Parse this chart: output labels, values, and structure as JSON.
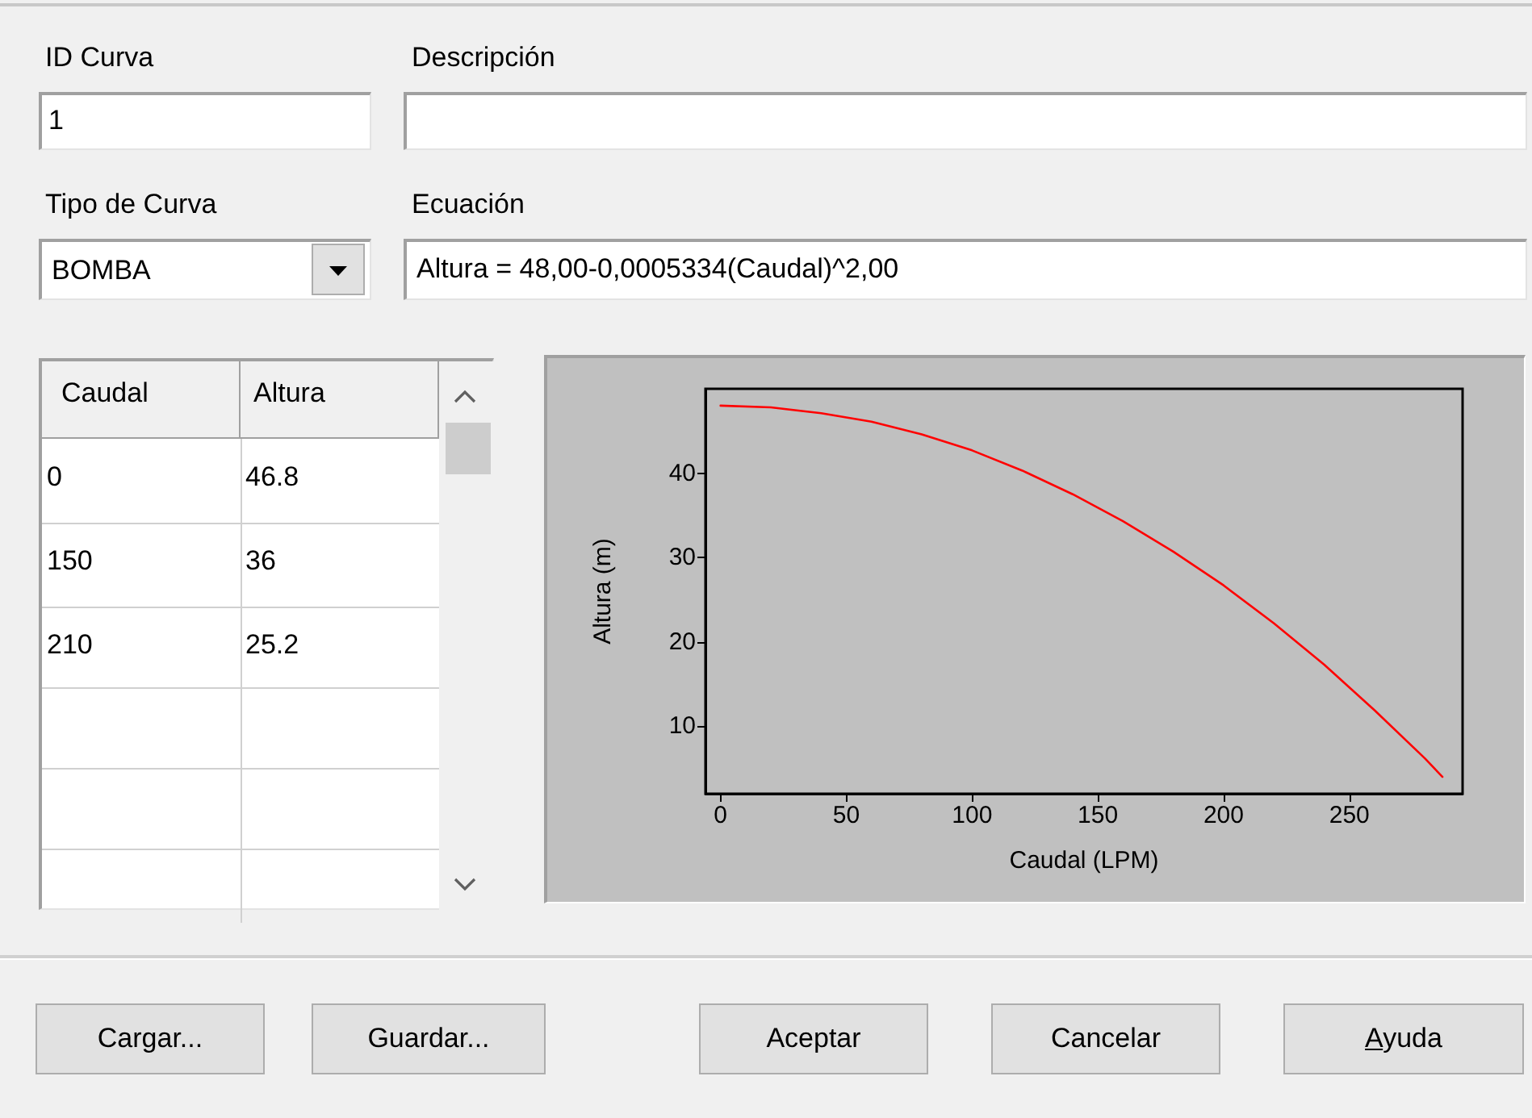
{
  "chart_data": {
    "type": "line",
    "xlabel": "Caudal (LPM)",
    "ylabel": "Altura (m)",
    "x": [
      0,
      20,
      40,
      60,
      80,
      100,
      120,
      140,
      160,
      180,
      200,
      220,
      240,
      260,
      280,
      287
    ],
    "series": [
      {
        "color": "#ff0000",
        "values": [
          48,
          47.8,
          47.1,
          46.1,
          44.6,
          42.7,
          40.3,
          37.5,
          34.3,
          30.7,
          26.7,
          22.2,
          17.3,
          11.9,
          6.2,
          4.0
        ]
      }
    ],
    "xlim": [
      -6,
      295
    ],
    "ylim": [
      2,
      50
    ],
    "xticks": [
      0,
      50,
      100,
      150,
      200,
      250
    ],
    "yticks": [
      10,
      20,
      30,
      40
    ],
    "grid": false,
    "marker": "none",
    "line_style": "solid",
    "annotations": [
      "ID Curva",
      "1",
      "Descripción",
      "Tipo de Curva",
      "BOMBA",
      "Ecuación",
      "Altura = 48,00-0,0005334(Caudal)^2,00",
      "Caudal",
      "Altura",
      "0",
      "46.8",
      "150",
      "36",
      "210",
      "25.2",
      "Cargar...",
      "Guardar...",
      "Aceptar",
      "Cancelar",
      "Ayuda"
    ]
  }
}
